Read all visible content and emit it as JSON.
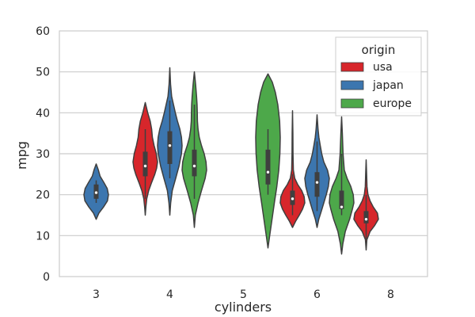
{
  "chart_data": {
    "type": "violin",
    "xlabel": "cylinders",
    "ylabel": "mpg",
    "categories": [
      "3",
      "4",
      "5",
      "6",
      "8"
    ],
    "ylim": [
      0,
      60
    ],
    "yticks": [
      0,
      10,
      20,
      30,
      40,
      50,
      60
    ],
    "grid": true,
    "legend": {
      "title": "origin",
      "placement": "top-right"
    },
    "series": [
      {
        "name": "usa",
        "color": "#d7262b",
        "violins": [
          {
            "category": "4",
            "min": 15,
            "max": 42.5,
            "q1": 24.5,
            "median": 27,
            "q3": 30.5,
            "whisker_low": 19,
            "whisker_high": 36,
            "profile": [
              [
                15,
                0
              ],
              [
                17,
                0.05
              ],
              [
                19,
                0.12
              ],
              [
                21,
                0.28
              ],
              [
                23,
                0.52
              ],
              [
                25,
                0.78
              ],
              [
                26.5,
                0.93
              ],
              [
                28,
                1.0
              ],
              [
                30,
                0.9
              ],
              [
                32,
                0.72
              ],
              [
                34,
                0.58
              ],
              [
                36,
                0.52
              ],
              [
                38,
                0.4
              ],
              [
                40,
                0.2
              ],
              [
                42.5,
                0
              ]
            ]
          },
          {
            "category": "6",
            "min": 12,
            "max": 40.5,
            "q1": 17.5,
            "median": 19,
            "q3": 21,
            "whisker_low": 15,
            "whisker_high": 25,
            "profile": [
              [
                12,
                0
              ],
              [
                13.5,
                0.25
              ],
              [
                15,
                0.55
              ],
              [
                16.5,
                0.82
              ],
              [
                18,
                1.0
              ],
              [
                19.5,
                0.95
              ],
              [
                21,
                0.75
              ],
              [
                22.5,
                0.42
              ],
              [
                24,
                0.18
              ],
              [
                26,
                0.07
              ],
              [
                30,
                0.04
              ],
              [
                35,
                0.03
              ],
              [
                40.5,
                0
              ]
            ]
          },
          {
            "category": "8",
            "min": 6.5,
            "max": 28.5,
            "q1": 13,
            "median": 14,
            "q3": 16,
            "whisker_low": 9,
            "whisker_high": 20,
            "profile": [
              [
                6.5,
                0
              ],
              [
                9,
                0.06
              ],
              [
                11,
                0.32
              ],
              [
                12.5,
                0.7
              ],
              [
                14,
                1.0
              ],
              [
                15.5,
                0.92
              ],
              [
                17,
                0.58
              ],
              [
                18.5,
                0.32
              ],
              [
                20,
                0.15
              ],
              [
                22,
                0.07
              ],
              [
                25,
                0.04
              ],
              [
                28.5,
                0
              ]
            ]
          }
        ]
      },
      {
        "name": "japan",
        "color": "#3c76af",
        "violins": [
          {
            "category": "3",
            "min": 14,
            "max": 27.5,
            "q1": 19,
            "median": 20.5,
            "q3": 22.5,
            "whisker_low": 18,
            "whisker_high": 23.5,
            "profile": [
              [
                14,
                0
              ],
              [
                15.5,
                0.22
              ],
              [
                17,
                0.6
              ],
              [
                18.5,
                0.92
              ],
              [
                20,
                1.0
              ],
              [
                21.5,
                0.9
              ],
              [
                23,
                0.62
              ],
              [
                24.5,
                0.32
              ],
              [
                26,
                0.18
              ],
              [
                27.5,
                0
              ]
            ]
          },
          {
            "category": "4",
            "min": 15,
            "max": 51,
            "q1": 27.5,
            "median": 32,
            "q3": 35.5,
            "whisker_low": 24,
            "whisker_high": 43,
            "profile": [
              [
                15,
                0
              ],
              [
                18,
                0.07
              ],
              [
                21,
                0.2
              ],
              [
                24,
                0.48
              ],
              [
                27,
                0.75
              ],
              [
                30,
                0.95
              ],
              [
                32,
                1.0
              ],
              [
                34,
                0.95
              ],
              [
                36,
                0.82
              ],
              [
                38,
                0.62
              ],
              [
                40,
                0.45
              ],
              [
                42,
                0.3
              ],
              [
                44,
                0.15
              ],
              [
                47,
                0.06
              ],
              [
                51,
                0
              ]
            ]
          },
          {
            "category": "6",
            "min": 12,
            "max": 39.5,
            "q1": 19.5,
            "median": 23,
            "q3": 25.5,
            "whisker_low": 16,
            "whisker_high": 33,
            "profile": [
              [
                12,
                0
              ],
              [
                14,
                0.14
              ],
              [
                16,
                0.35
              ],
              [
                18,
                0.55
              ],
              [
                20,
                0.75
              ],
              [
                22,
                0.92
              ],
              [
                24,
                1.0
              ],
              [
                26,
                0.85
              ],
              [
                28,
                0.55
              ],
              [
                30,
                0.38
              ],
              [
                32,
                0.26
              ],
              [
                34,
                0.15
              ],
              [
                36,
                0.08
              ],
              [
                39.5,
                0
              ]
            ]
          }
        ]
      },
      {
        "name": "europe",
        "color": "#4da84a",
        "violins": [
          {
            "category": "4",
            "min": 12,
            "max": 50,
            "q1": 24.5,
            "median": 27,
            "q3": 31,
            "whisker_low": 19,
            "whisker_high": 42,
            "profile": [
              [
                12,
                0
              ],
              [
                15,
                0.08
              ],
              [
                18,
                0.3
              ],
              [
                21,
                0.58
              ],
              [
                24,
                0.88
              ],
              [
                26,
                1.0
              ],
              [
                28,
                0.95
              ],
              [
                30,
                0.8
              ],
              [
                32,
                0.58
              ],
              [
                34,
                0.4
              ],
              [
                36,
                0.3
              ],
              [
                38,
                0.25
              ],
              [
                40,
                0.24
              ],
              [
                42,
                0.22
              ],
              [
                44,
                0.18
              ],
              [
                47,
                0.1
              ],
              [
                50,
                0
              ]
            ]
          },
          {
            "category": "5",
            "min": 7,
            "max": 49.5,
            "q1": 22.5,
            "median": 25.5,
            "q3": 31,
            "whisker_low": 20,
            "whisker_high": 36,
            "profile": [
              [
                7,
                0
              ],
              [
                10,
                0.14
              ],
              [
                14,
                0.33
              ],
              [
                18,
                0.52
              ],
              [
                22,
                0.72
              ],
              [
                26,
                0.88
              ],
              [
                30,
                0.97
              ],
              [
                34,
                1.0
              ],
              [
                38,
                0.95
              ],
              [
                42,
                0.8
              ],
              [
                45,
                0.6
              ],
              [
                47.5,
                0.35
              ],
              [
                49.5,
                0
              ]
            ]
          },
          {
            "category": "6",
            "min": 5.5,
            "max": 39,
            "q1": 16.5,
            "median": 17,
            "q3": 21,
            "whisker_low": 15,
            "whisker_high": 30,
            "profile": [
              [
                5.5,
                0
              ],
              [
                8,
                0.1
              ],
              [
                11,
                0.3
              ],
              [
                14,
                0.65
              ],
              [
                16.5,
                0.88
              ],
              [
                18,
                1.0
              ],
              [
                20,
                0.95
              ],
              [
                22,
                0.75
              ],
              [
                24,
                0.45
              ],
              [
                26,
                0.22
              ],
              [
                30,
                0.12
              ],
              [
                35,
                0.06
              ],
              [
                39,
                0
              ]
            ]
          }
        ]
      }
    ]
  }
}
